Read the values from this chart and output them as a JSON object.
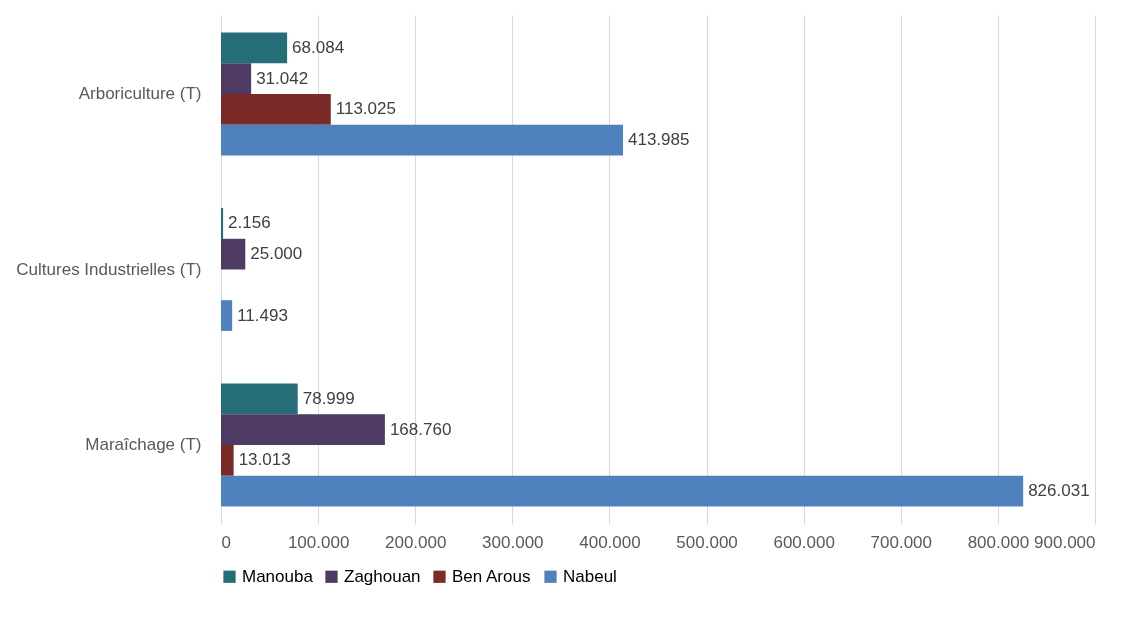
{
  "chart_data": {
    "type": "bar",
    "orientation": "horizontal",
    "categories": [
      "Arboriculture (T)",
      "Cultures Industrielles (T)",
      "Maraîchage (T)"
    ],
    "series": [
      {
        "name": "Manouba",
        "color": "#256e78",
        "values": [
          68084,
          2156,
          78999
        ],
        "value_labels": [
          "68.084",
          "2.156",
          "78.999"
        ]
      },
      {
        "name": "Zaghouan",
        "color": "#4e3a62",
        "values": [
          31042,
          25000,
          168760
        ],
        "value_labels": [
          "31.042",
          "25.000",
          "168.760"
        ]
      },
      {
        "name": "Ben Arous",
        "color": "#7b2a27",
        "values": [
          113025,
          null,
          13013
        ],
        "value_labels": [
          "113.025",
          null,
          "13.013"
        ]
      },
      {
        "name": "Nabeul",
        "color": "#4f81bd",
        "values": [
          413985,
          11493,
          826031
        ],
        "value_labels": [
          "413.985",
          "11.493",
          "826.031"
        ]
      }
    ],
    "xlim": [
      0,
      900000
    ],
    "xticks": [
      0,
      {
        "value": 100000,
        "label": "100.000"
      },
      {
        "value": 200000,
        "label": "200.000"
      },
      {
        "value": 300000,
        "label": "300.000"
      },
      {
        "value": 400000,
        "label": "400.000"
      },
      {
        "value": 500000,
        "label": "500.000"
      },
      {
        "value": 600000,
        "label": "600.000"
      },
      {
        "value": 700000,
        "label": "700.000"
      },
      {
        "value": 800000,
        "label": "800.000"
      },
      {
        "value": 900000,
        "label": "900.000"
      }
    ],
    "grid": "x",
    "legend": "bottom"
  }
}
